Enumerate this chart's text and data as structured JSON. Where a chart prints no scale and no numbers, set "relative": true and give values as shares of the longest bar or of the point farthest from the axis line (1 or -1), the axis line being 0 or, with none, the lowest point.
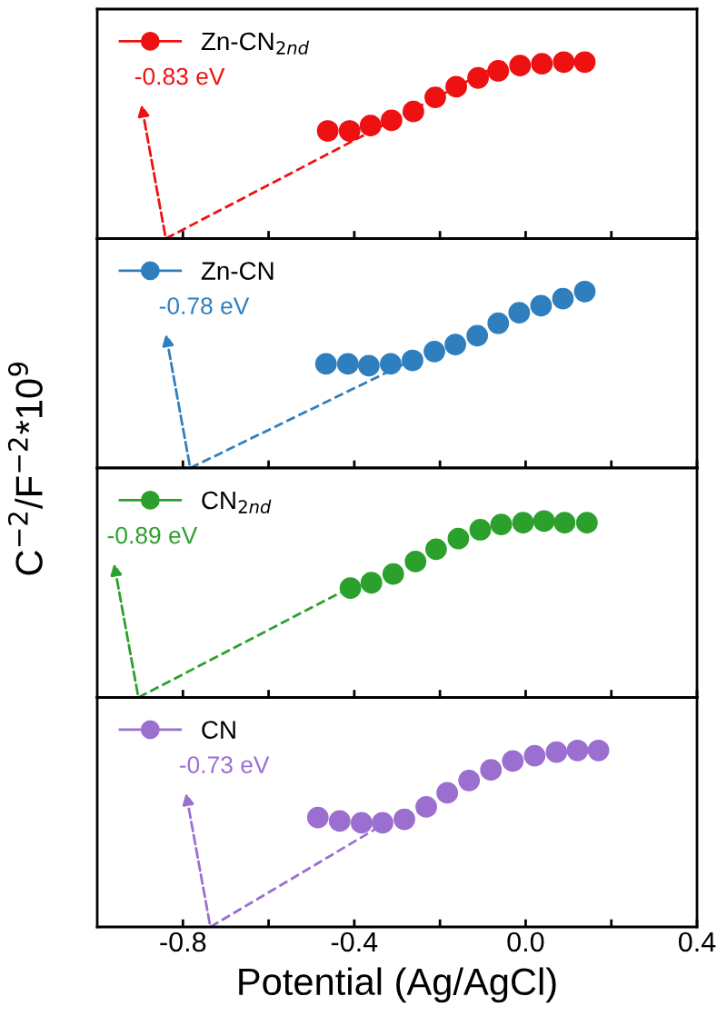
{
  "chart_data": [
    {
      "type": "scatter",
      "relative": true,
      "ylabel": "C$^{−2}$/F$^{−2}$*10$^{9}$",
      "xlim": [
        -1.0,
        0.4
      ],
      "xticks": [
        {
          "value": -0.8,
          "label": null
        },
        {
          "value": -0.6,
          "label": null
        },
        {
          "value": -0.4,
          "label": null
        },
        {
          "value": -0.2,
          "label": null
        },
        {
          "value": 0.0,
          "label": null
        },
        {
          "value": 0.2,
          "label": null
        },
        {
          "value": 0.4,
          "label": null
        }
      ],
      "tick_labels": false,
      "legend": "top left",
      "grid": false,
      "series": [
        {
          "marker": "circle",
          "name": "Zn-CN$_{2nd}$",
          "color": "#ee1111",
          "x": [
            -0.462,
            -0.411,
            -0.362,
            -0.313,
            -0.262,
            -0.211,
            -0.162,
            -0.111,
            -0.064,
            -0.013,
            0.038,
            0.089,
            0.138
          ],
          "values": [
            0.61,
            0.61,
            0.64,
            0.67,
            0.72,
            0.8,
            0.86,
            0.91,
            0.95,
            0.98,
            0.99,
            1.0,
            1.0
          ]
        },
        {
          "type": "line",
          "line_style": "dashed",
          "color": "#ee1111",
          "x": [
            -0.84,
            -0.05
          ],
          "values": [
            0,
            1.0
          ]
        }
      ],
      "annotations": [
        {
          "text": "-0.83 eV",
          "x": -0.84,
          "y": 0
        }
      ]
    },
    {
      "type": "scatter",
      "relative": true,
      "xlim": [
        -1.0,
        0.4
      ],
      "xticks": [
        {
          "value": -0.8,
          "label": null
        },
        {
          "value": -0.6,
          "label": null
        },
        {
          "value": -0.4,
          "label": null
        },
        {
          "value": -0.2,
          "label": null
        },
        {
          "value": 0.0,
          "label": null
        },
        {
          "value": 0.2,
          "label": null
        },
        {
          "value": 0.4,
          "label": null
        }
      ],
      "tick_labels": false,
      "legend": "top left",
      "grid": false,
      "series": [
        {
          "marker": "circle",
          "name": "Zn-CN",
          "color": "#2f7fbf",
          "x": [
            -0.466,
            -0.415,
            -0.366,
            -0.315,
            -0.264,
            -0.213,
            -0.164,
            -0.113,
            -0.064,
            -0.015,
            0.036,
            0.087,
            0.138
          ],
          "values": [
            0.59,
            0.59,
            0.58,
            0.59,
            0.61,
            0.66,
            0.7,
            0.75,
            0.82,
            0.88,
            0.92,
            0.96,
            1.0
          ]
        },
        {
          "type": "line",
          "line_style": "dashed",
          "color": "#2f7fbf",
          "x": [
            -0.783,
            -0.266
          ],
          "values": [
            0,
            0.61
          ]
        }
      ],
      "annotations": [
        {
          "text": "-0.78 eV",
          "x": -0.783,
          "y": 0
        }
      ]
    },
    {
      "type": "scatter",
      "relative": true,
      "xlim": [
        -1.0,
        0.4
      ],
      "xticks": [
        {
          "value": -0.8,
          "label": null
        },
        {
          "value": -0.6,
          "label": null
        },
        {
          "value": -0.4,
          "label": null
        },
        {
          "value": -0.2,
          "label": null
        },
        {
          "value": 0.0,
          "label": null
        },
        {
          "value": 0.2,
          "label": null
        },
        {
          "value": 0.4,
          "label": null
        }
      ],
      "tick_labels": false,
      "legend": "top left",
      "grid": false,
      "series": [
        {
          "marker": "circle",
          "name": "CN$_{2nd}$",
          "color": "#2ca02c",
          "x": [
            -0.409,
            -0.36,
            -0.309,
            -0.257,
            -0.209,
            -0.157,
            -0.106,
            -0.057,
            -0.006,
            0.043,
            0.091,
            0.143
          ],
          "values": [
            0.62,
            0.65,
            0.7,
            0.77,
            0.84,
            0.9,
            0.95,
            0.98,
            0.99,
            1.0,
            0.99,
            0.99
          ]
        },
        {
          "type": "line",
          "line_style": "dashed",
          "color": "#2ca02c",
          "x": [
            -0.904,
            -0.404
          ],
          "values": [
            0,
            0.63
          ]
        }
      ],
      "annotations": [
        {
          "text": "-0.89 eV",
          "x": -0.904,
          "y": 0
        }
      ]
    },
    {
      "type": "scatter",
      "relative": true,
      "xlabel": "Potential (Ag/AgCl)",
      "xlim": [
        -1.0,
        0.4
      ],
      "xticks": [
        -0.8,
        {
          "value": -0.6,
          "label": null
        },
        -0.4,
        {
          "value": -0.2,
          "label": null
        },
        {
          "value": 0.0,
          "label": "0.0"
        },
        {
          "value": 0.2,
          "label": null
        },
        0.4
      ],
      "tick_labels": "x",
      "legend": "top left",
      "grid": false,
      "series": [
        {
          "marker": "circle",
          "name": "CN",
          "color": "#9b6fcf",
          "x": [
            -0.485,
            -0.434,
            -0.383,
            -0.334,
            -0.283,
            -0.232,
            -0.183,
            -0.132,
            -0.081,
            -0.03,
            0.021,
            0.072,
            0.121,
            0.17
          ],
          "values": [
            0.62,
            0.6,
            0.59,
            0.59,
            0.61,
            0.68,
            0.76,
            0.83,
            0.89,
            0.94,
            0.97,
            0.99,
            1.0,
            1.0
          ]
        },
        {
          "type": "line",
          "line_style": "dashed",
          "color": "#9b6fcf",
          "x": [
            -0.736,
            -0.319
          ],
          "values": [
            0,
            0.6
          ]
        }
      ],
      "annotations": [
        {
          "text": "-0.73 eV",
          "x": -0.736,
          "y": 0
        }
      ]
    }
  ]
}
